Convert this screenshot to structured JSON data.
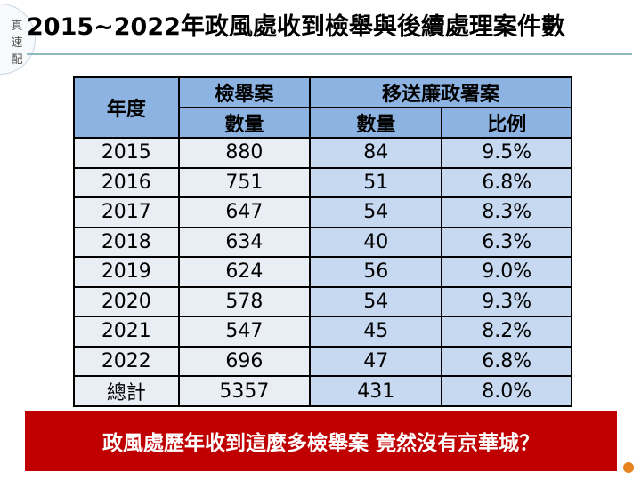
{
  "logo": {
    "chars": [
      "真",
      "速",
      "配"
    ]
  },
  "title": "2015~2022年政風處收到檢舉與後續處理案件數",
  "table": {
    "header": {
      "year": "年度",
      "group1": "檢舉案",
      "group2": "移送廉政署案",
      "sub": [
        "數量",
        "數量",
        "比例"
      ]
    },
    "rows": [
      [
        "2015",
        "880",
        "84",
        "9.5%"
      ],
      [
        "2016",
        "751",
        "51",
        "6.8%"
      ],
      [
        "2017",
        "647",
        "54",
        "8.3%"
      ],
      [
        "2018",
        "634",
        "40",
        "6.3%"
      ],
      [
        "2019",
        "624",
        "56",
        "9.0%"
      ],
      [
        "2020",
        "578",
        "54",
        "9.3%"
      ],
      [
        "2021",
        "547",
        "45",
        "8.2%"
      ],
      [
        "2022",
        "696",
        "47",
        "6.8%"
      ],
      [
        "總計",
        "5357",
        "431",
        "8.0%"
      ]
    ]
  },
  "banner": "政風處歷年收到這麼多檢舉案 竟然沒有京華城？"
}
